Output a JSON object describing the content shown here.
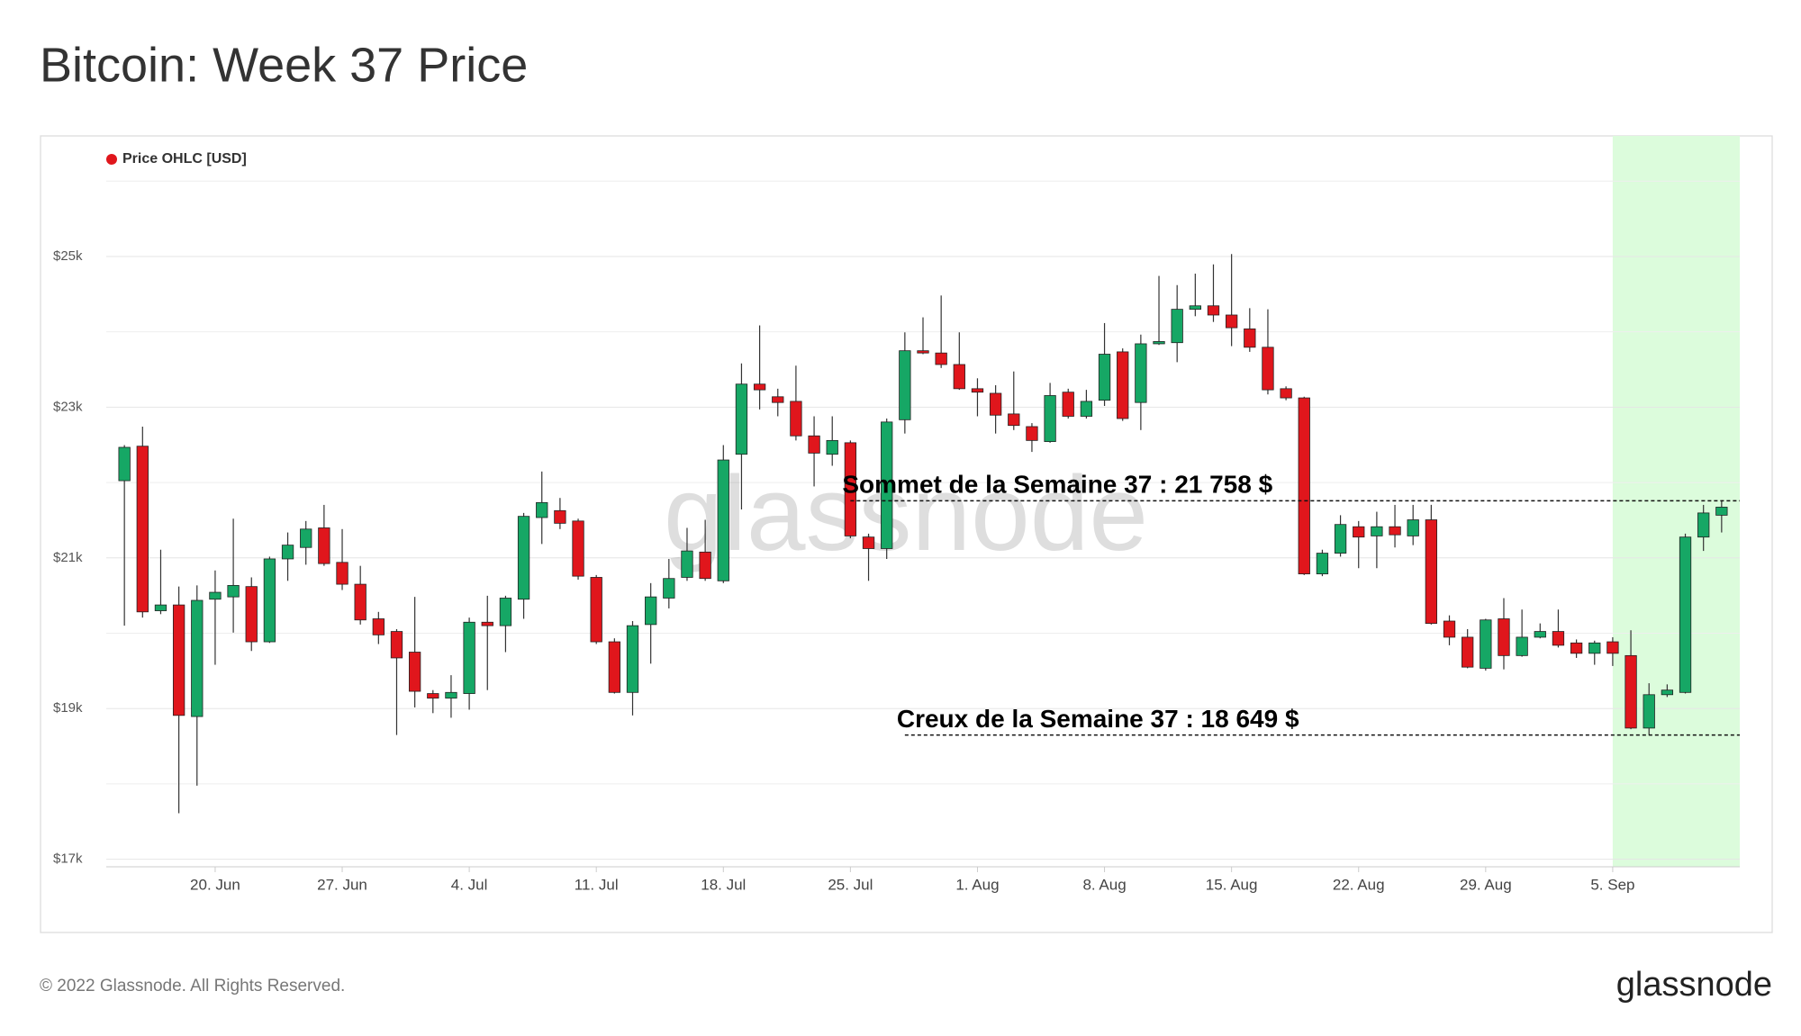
{
  "chart_data": {
    "type": "candlestick",
    "title": "Bitcoin: Week 37 Price",
    "watermark": "glassnode",
    "footer": "© 2022 Glassnode. All Rights Reserved.",
    "logo": "glassnode",
    "legend": "top-left",
    "grid": true,
    "series": [
      {
        "name": "Price OHLC [USD]",
        "color": "#e0161c",
        "up_color": "#16a765",
        "down_color": "#e0161c",
        "x": [
          "06-15",
          "06-16",
          "06-17",
          "06-18",
          "06-19",
          "06-20",
          "06-21",
          "06-22",
          "06-23",
          "06-24",
          "06-25",
          "06-26",
          "06-27",
          "06-28",
          "06-29",
          "06-30",
          "07-01",
          "07-02",
          "07-03",
          "07-04",
          "07-05",
          "07-06",
          "07-07",
          "07-08",
          "07-09",
          "07-10",
          "07-11",
          "07-12",
          "07-13",
          "07-14",
          "07-15",
          "07-16",
          "07-17",
          "07-18",
          "07-19",
          "07-20",
          "07-21",
          "07-22",
          "07-23",
          "07-24",
          "07-25",
          "07-26",
          "07-27",
          "07-28",
          "07-29",
          "07-30",
          "07-31",
          "08-01",
          "08-02",
          "08-03",
          "08-04",
          "08-05",
          "08-06",
          "08-07",
          "08-08",
          "08-09",
          "08-10",
          "08-11",
          "08-12",
          "08-13",
          "08-14",
          "08-15",
          "08-16",
          "08-17",
          "08-18",
          "08-19",
          "08-20",
          "08-21",
          "08-22",
          "08-23",
          "08-24",
          "08-25",
          "08-26",
          "08-27",
          "08-28",
          "08-29",
          "08-30",
          "08-31",
          "09-01",
          "09-02",
          "09-03",
          "09-04",
          "09-05",
          "09-06",
          "09-07",
          "09-08",
          "09-09",
          "09-10",
          "09-11"
        ],
        "open": [
          22024,
          22482,
          20298,
          20375,
          18894,
          20451,
          20482,
          20619,
          19886,
          20986,
          21138,
          21398,
          20940,
          20650,
          20191,
          20023,
          19749,
          19199,
          19138,
          19199,
          20146,
          20100,
          20451,
          21535,
          21627,
          21489,
          20741,
          19886,
          19214,
          20115,
          20466,
          20741,
          21077,
          20695,
          22375,
          23306,
          23138,
          23077,
          22619,
          22375,
          22528,
          21276,
          21123,
          22833,
          23749,
          23719,
          23566,
          23245,
          23184,
          22910,
          22742,
          22543,
          23199,
          22879,
          23092,
          23734,
          23062,
          23841,
          23856,
          24299,
          24345,
          24223,
          24039,
          23795,
          23245,
          23123,
          20787,
          21062,
          21413,
          21291,
          21413,
          21291,
          21505,
          20161,
          19947,
          19535,
          20191,
          19703,
          19947,
          20023,
          19871,
          19733,
          19886,
          19703,
          18741,
          19184,
          19214,
          21276,
          21566
        ],
        "high": [
          22497,
          22742,
          21108,
          20619,
          20634,
          20833,
          21520,
          20741,
          21016,
          21337,
          21489,
          21703,
          21382,
          20894,
          20283,
          20054,
          20482,
          19245,
          19443,
          20207,
          20497,
          20497,
          21596,
          22146,
          21795,
          21520,
          20772,
          19932,
          20161,
          20665,
          20986,
          21398,
          21505,
          22497,
          23581,
          24085,
          23245,
          23551,
          22879,
          22879,
          22558,
          21321,
          22849,
          23993,
          24192,
          24482,
          23993,
          23383,
          23291,
          23474,
          22788,
          23322,
          23245,
          23230,
          24116,
          23780,
          23963,
          24742,
          24620,
          24772,
          24895,
          25032,
          24314,
          24299,
          23276,
          23138,
          21108,
          21566,
          21489,
          21612,
          21703,
          21703,
          21703,
          20237,
          20054,
          20191,
          20466,
          20314,
          20130,
          20314,
          19917,
          19901,
          19947,
          20039,
          19336,
          19321,
          21321,
          21703,
          21758
        ],
        "low": [
          20100,
          20207,
          20253,
          17611,
          17977,
          19581,
          20008,
          19764,
          19871,
          20695,
          20909,
          20894,
          20573,
          20115,
          19856,
          18649,
          19015,
          18939,
          18878,
          18985,
          19245,
          19749,
          20191,
          21184,
          21382,
          20711,
          19856,
          19199,
          18909,
          19596,
          20329,
          20695,
          20695,
          20665,
          21642,
          22970,
          22879,
          22558,
          21948,
          22222,
          21260,
          20695,
          20986,
          22650,
          23703,
          23520,
          23230,
          22879,
          22650,
          22696,
          22406,
          22528,
          22849,
          22849,
          23016,
          22818,
          22696,
          23826,
          23597,
          24207,
          24131,
          23810,
          23734,
          23169,
          23092,
          20772,
          20757,
          21016,
          20863,
          20863,
          21138,
          21169,
          20115,
          19840,
          19535,
          19504,
          19520,
          19688,
          19932,
          19810,
          19672,
          19581,
          19565,
          18726,
          18649,
          19153,
          19199,
          21092,
          21337
        ],
        "close": [
          22467,
          20283,
          20375,
          18909,
          20436,
          20543,
          20634,
          19886,
          20986,
          21169,
          21382,
          20924,
          20650,
          20176,
          19978,
          19672,
          19229,
          19138,
          19214,
          20146,
          20100,
          20466,
          21551,
          21734,
          21459,
          20757,
          19886,
          19214,
          20100,
          20482,
          20726,
          21092,
          20726,
          22299,
          23306,
          23230,
          23062,
          22619,
          22390,
          22558,
          21291,
          21123,
          22803,
          23749,
          23719,
          23566,
          23245,
          23199,
          22894,
          22757,
          22558,
          23154,
          22879,
          23077,
          23703,
          22849,
          23841,
          23871,
          24299,
          24345,
          24223,
          24054,
          23795,
          23230,
          23123,
          20787,
          21062,
          21443,
          21276,
          21413,
          21306,
          21505,
          20130,
          19947,
          19550,
          20176,
          19703,
          19947,
          20023,
          19840,
          19733,
          19871,
          19733,
          18741,
          19184,
          19245,
          21276,
          21596,
          21673
        ]
      }
    ],
    "xlim": [
      "06-14",
      "09-12"
    ],
    "xticks": [
      {
        "value": "06-20",
        "label": "20. Jun"
      },
      {
        "value": "06-27",
        "label": "27. Jun"
      },
      {
        "value": "07-04",
        "label": "4. Jul"
      },
      {
        "value": "07-11",
        "label": "11. Jul"
      },
      {
        "value": "07-18",
        "label": "18. Jul"
      },
      {
        "value": "07-25",
        "label": "25. Jul"
      },
      {
        "value": "08-01",
        "label": "1. Aug"
      },
      {
        "value": "08-08",
        "label": "8. Aug"
      },
      {
        "value": "08-15",
        "label": "15. Aug"
      },
      {
        "value": "08-22",
        "label": "22. Aug"
      },
      {
        "value": "08-29",
        "label": "29. Aug"
      },
      {
        "value": "09-05",
        "label": "5. Sep"
      }
    ],
    "ylim": [
      16900,
      26600
    ],
    "yticks": [
      {
        "value": 17000,
        "label": "$17k"
      },
      {
        "value": 19000,
        "label": "$19k"
      },
      {
        "value": 21000,
        "label": "$21k"
      },
      {
        "value": 23000,
        "label": "$23k"
      },
      {
        "value": 25000,
        "label": "$25k"
      }
    ],
    "minor_yticks": [
      18000,
      20000,
      22000,
      24000,
      26000
    ],
    "highlight": {
      "from": "09-05",
      "to": "09-12",
      "color": "#dcfcdc"
    },
    "annotations": [
      {
        "text": "Sommet de la Semaine 37 : 21 758 $",
        "value": 21758,
        "from": "07-25"
      },
      {
        "text": "Creux de la Semaine 37 : 18 649 $",
        "value": 18649,
        "from": "07-28"
      }
    ]
  }
}
